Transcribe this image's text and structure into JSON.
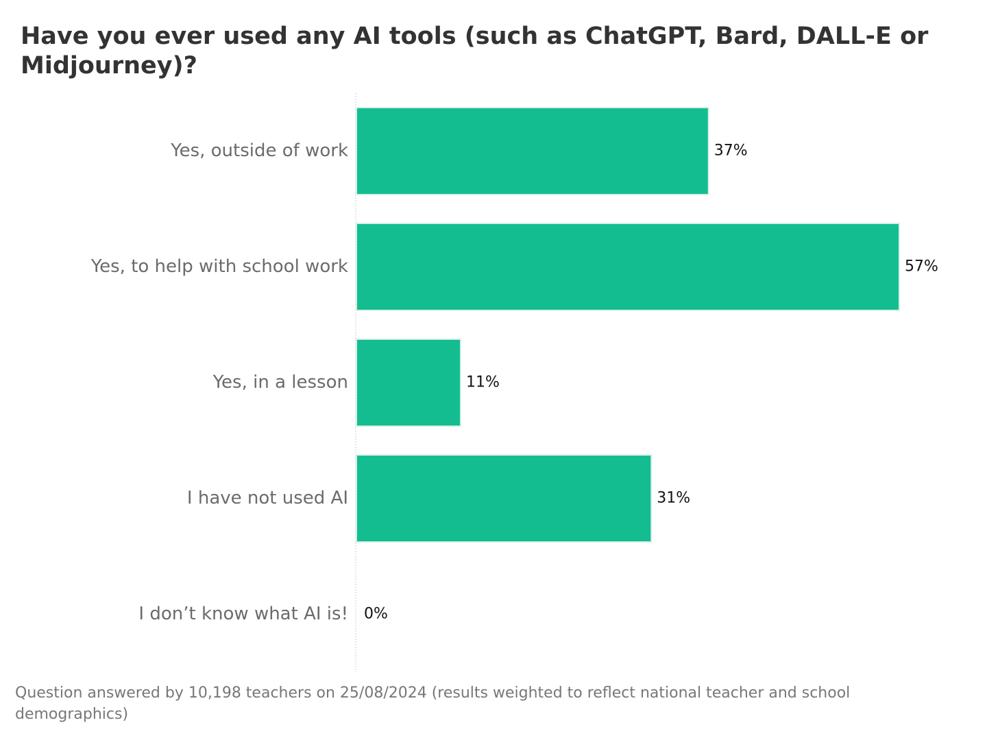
{
  "chart_data": {
    "type": "bar",
    "orientation": "horizontal",
    "title": "Have you ever used any AI tools (such as ChatGPT, Bard, DALL-E or Midjourney)?",
    "categories": [
      "Yes, outside of work",
      "Yes, to help with school work",
      "Yes, in a lesson",
      "I have not used AI",
      "I don’t know what AI is!"
    ],
    "values": [
      37,
      57,
      11,
      31,
      0
    ],
    "value_labels": [
      "37%",
      "57%",
      "11%",
      "31%",
      "0%"
    ],
    "color": "#14bd8f",
    "note": "Question answered by 10,198 teachers on 25/08/2024 (results weighted to reflect national teacher and school demographics)"
  }
}
